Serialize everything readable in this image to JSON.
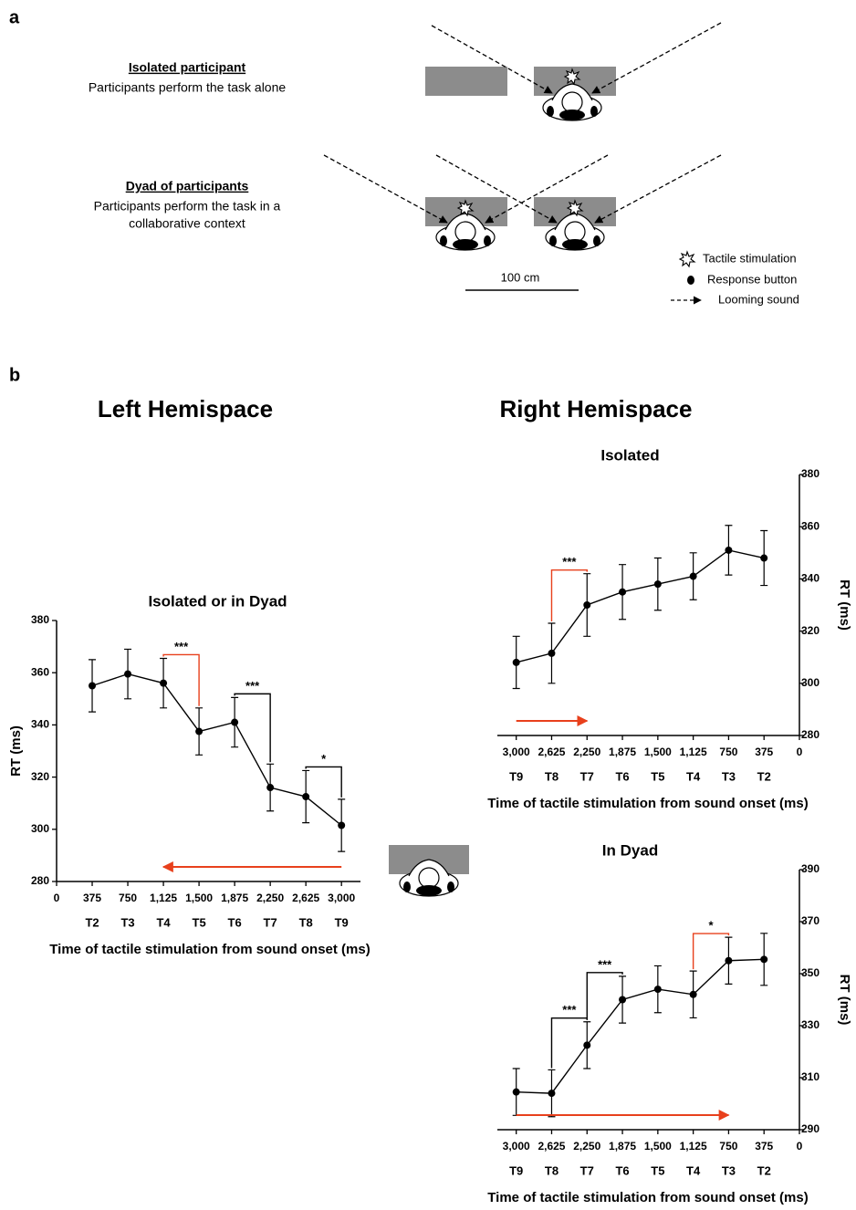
{
  "panels": {
    "a": "a",
    "b": "b"
  },
  "diagram": {
    "conditions": [
      {
        "title": "Isolated participant",
        "description": [
          "Participants perform the task alone"
        ]
      },
      {
        "title": "Dyad of participants",
        "description": [
          "Participants perform the task in a",
          "collaborative context"
        ]
      }
    ],
    "scale_bar": "100 cm",
    "legend": [
      "Tactile stimulation",
      "Response button",
      "Looming sound"
    ]
  },
  "hemispaces": [
    "Left Hemispace",
    "Right Hemispace"
  ],
  "chart_data": [
    {
      "type": "line",
      "title": "Isolated or in Dyad",
      "x_label": "Time of tactile stimulation from sound onset (ms)",
      "y_label": "RT (ms)",
      "y_axis_side": "left",
      "x": [
        375,
        750,
        1125,
        1500,
        1875,
        2250,
        2625,
        3000
      ],
      "x_names": [
        "T2",
        "T3",
        "T4",
        "T5",
        "T6",
        "T7",
        "T8",
        "T9"
      ],
      "xlim": [
        0,
        3200
      ],
      "xticks": [
        0,
        375,
        750,
        {
          "value": 1125,
          "label": "1,125"
        },
        {
          "value": 1500,
          "label": "1,500"
        },
        {
          "value": 1875,
          "label": "1,875"
        },
        {
          "value": 2250,
          "label": "2,250"
        },
        {
          "value": 2625,
          "label": "2,625"
        },
        {
          "value": 3000,
          "label": "3,000"
        }
      ],
      "ylim": [
        280,
        380
      ],
      "yticks": [
        280,
        300,
        320,
        340,
        360,
        380
      ],
      "series": [
        {
          "color": "#000000",
          "values": [
            355,
            359.5,
            356,
            337.5,
            341,
            316,
            312.5,
            301.5
          ],
          "errors": [
            10,
            9.5,
            9.5,
            9,
            9.5,
            9,
            10,
            10
          ]
        }
      ],
      "annotations": [
        {
          "from": 1125,
          "to": 1500,
          "label": "***",
          "color": "#e8401c"
        },
        {
          "from": 1875,
          "to": 2250,
          "label": "***",
          "color": "#000000"
        },
        {
          "from": 2625,
          "to": 3000,
          "label": "*",
          "color": "#000000"
        }
      ],
      "arrow": {
        "from": 3000,
        "to": 1125,
        "color": "#e8401c"
      }
    },
    {
      "type": "line",
      "title": "Isolated",
      "x_label": "Time of tactile stimulation from sound onset (ms)",
      "y_label": "RT (ms)",
      "y_axis_side": "right",
      "x": [
        3000,
        2625,
        2250,
        1875,
        1500,
        1125,
        750,
        375
      ],
      "x_names": [
        "T9",
        "T8",
        "T7",
        "T6",
        "T5",
        "T4",
        "T3",
        "T2"
      ],
      "xlim": [
        3200,
        0
      ],
      "xticks": [
        {
          "value": 3000,
          "label": "3,000"
        },
        {
          "value": 2625,
          "label": "2,625"
        },
        {
          "value": 2250,
          "label": "2,250"
        },
        {
          "value": 1875,
          "label": "1,875"
        },
        {
          "value": 1500,
          "label": "1,500"
        },
        {
          "value": 1125,
          "label": "1,125"
        },
        750,
        375,
        0
      ],
      "ylim": [
        280,
        380
      ],
      "yticks": [
        280,
        300,
        320,
        340,
        360,
        380
      ],
      "series": [
        {
          "color": "#000000",
          "values": [
            308,
            311.5,
            330,
            335,
            338,
            341,
            351,
            348
          ],
          "errors": [
            10,
            11.5,
            12,
            10.5,
            10,
            9,
            9.5,
            10.5
          ]
        }
      ],
      "annotations": [
        {
          "from": 2625,
          "to": 2250,
          "label": "***",
          "color": "#e8401c"
        }
      ],
      "arrow": {
        "from": 3000,
        "to": 2250,
        "color": "#e8401c"
      }
    },
    {
      "type": "line",
      "title": "In Dyad",
      "x_label": "Time of tactile stimulation from sound onset (ms)",
      "y_label": "RT (ms)",
      "y_axis_side": "right",
      "x": [
        3000,
        2625,
        2250,
        1875,
        1500,
        1125,
        750,
        375
      ],
      "x_names": [
        "T9",
        "T8",
        "T7",
        "T6",
        "T5",
        "T4",
        "T3",
        "T2"
      ],
      "xlim": [
        3200,
        0
      ],
      "xticks": [
        {
          "value": 3000,
          "label": "3,000"
        },
        {
          "value": 2625,
          "label": "2,625"
        },
        {
          "value": 2250,
          "label": "2,250"
        },
        {
          "value": 1875,
          "label": "1,875"
        },
        {
          "value": 1500,
          "label": "1,500"
        },
        {
          "value": 1125,
          "label": "1,125"
        },
        750,
        375,
        0
      ],
      "ylim": [
        290,
        390
      ],
      "yticks": [
        290,
        310,
        330,
        350,
        370,
        390
      ],
      "series": [
        {
          "color": "#000000",
          "values": [
            304.5,
            304,
            322.5,
            340,
            344,
            342,
            355,
            355.5
          ],
          "errors": [
            9,
            9,
            9,
            9,
            9,
            9,
            9,
            10
          ]
        }
      ],
      "annotations": [
        {
          "from": 2625,
          "to": 2250,
          "label": "***",
          "color": "#000000"
        },
        {
          "from": 2250,
          "to": 1875,
          "label": "***",
          "color": "#000000"
        },
        {
          "from": 1125,
          "to": 750,
          "label": "*",
          "color": "#e8401c"
        }
      ],
      "arrow": {
        "from": 3000,
        "to": 750,
        "color": "#e8401c"
      }
    }
  ]
}
